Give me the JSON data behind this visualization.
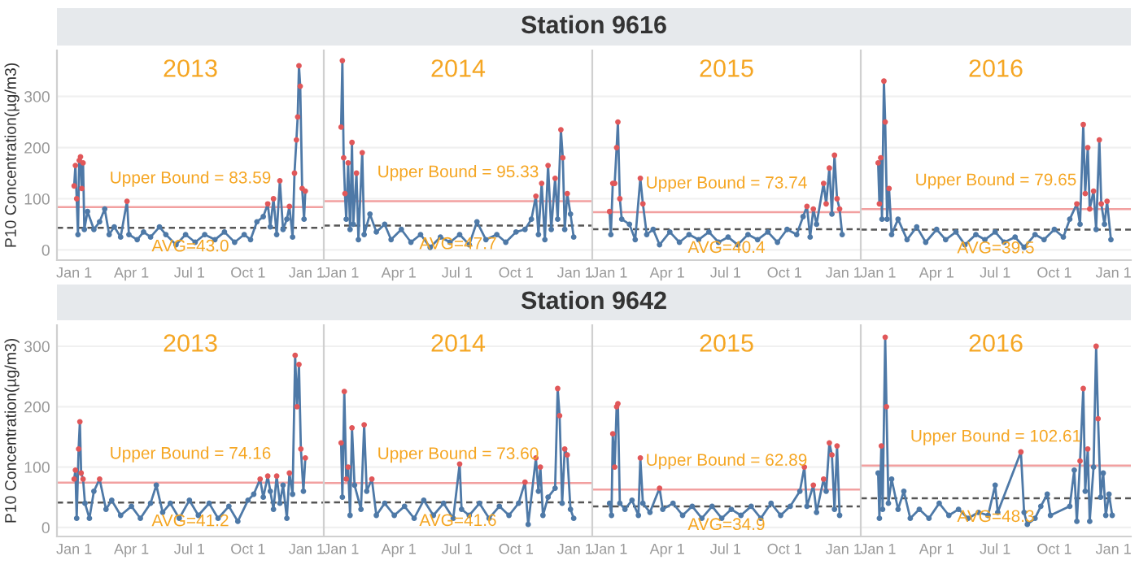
{
  "chart_data": [
    {
      "type": "line",
      "subtitle": "2013",
      "ylabel": "P10 Concentration(µg/m3)",
      "xlim": [
        "2012-12-05",
        "2014-01-28"
      ],
      "ylim": [
        -20,
        390
      ],
      "yticks": [
        0,
        100,
        200,
        300
      ],
      "xticks": [
        {
          "value": "2013-01-01",
          "label": "Jan 1"
        },
        {
          "value": "2013-04-01",
          "label": "Apr 1"
        },
        {
          "value": "2013-07-01",
          "label": "Jul 1"
        },
        {
          "value": "2013-10-01",
          "label": "Oct 1"
        },
        {
          "value": "2014-01-01",
          "label": "Jan 1"
        }
      ],
      "grid": "y",
      "marker": "circle",
      "line_style": "solid",
      "ref_lines": [
        {
          "axis": "y",
          "value": 83.59,
          "label": "Upper Bound = 83.59",
          "color": "#f2a0a0",
          "line_style": "solid"
        },
        {
          "axis": "y",
          "value": 43.0,
          "label": "AVG=43.0",
          "color": "#555555",
          "line_style": "dashed"
        }
      ],
      "series": [
        {
          "color": "#4e79a7",
          "x": [
            "2013-01-01",
            "2013-01-03",
            "2013-01-05",
            "2013-01-07",
            "2013-01-09",
            "2013-01-11",
            "2013-01-13",
            "2013-01-15",
            "2013-01-17",
            "2013-01-22",
            "2013-02-01",
            "2013-02-10",
            "2013-02-18",
            "2013-02-25",
            "2013-03-05",
            "2013-03-15",
            "2013-03-25",
            "2013-03-28",
            "2013-04-10",
            "2013-04-20",
            "2013-05-01",
            "2013-05-15",
            "2013-05-25",
            "2013-06-10",
            "2013-06-25",
            "2013-07-10",
            "2013-07-25",
            "2013-08-10",
            "2013-08-25",
            "2013-09-10",
            "2013-09-25",
            "2013-10-05",
            "2013-10-15",
            "2013-10-25",
            "2013-11-01",
            "2013-11-05",
            "2013-11-10",
            "2013-11-15",
            "2013-11-20",
            "2013-11-25",
            "2013-12-01",
            "2013-12-05",
            "2013-12-10",
            "2013-12-13",
            "2013-12-16",
            "2013-12-18",
            "2013-12-20",
            "2013-12-22",
            "2013-12-25",
            "2013-12-28",
            "2013-12-30"
          ],
          "values": [
            125,
            165,
            100,
            30,
            175,
            182,
            120,
            170,
            40,
            75,
            40,
            55,
            80,
            30,
            45,
            25,
            95,
            30,
            20,
            35,
            25,
            45,
            30,
            10,
            30,
            15,
            30,
            20,
            35,
            15,
            30,
            20,
            55,
            65,
            90,
            45,
            100,
            30,
            135,
            40,
            60,
            85,
            25,
            150,
            215,
            260,
            360,
            320,
            120,
            60,
            115
          ],
          "colors": [
            "#e15759",
            "#e15759",
            "#e15759",
            "#4e79a7",
            "#e15759",
            "#e15759",
            "#e15759",
            "#e15759",
            "#4e79a7",
            "#4e79a7",
            "#4e79a7",
            "#4e79a7",
            "#4e79a7",
            "#4e79a7",
            "#4e79a7",
            "#4e79a7",
            "#e15759",
            "#4e79a7",
            "#4e79a7",
            "#4e79a7",
            "#4e79a7",
            "#4e79a7",
            "#4e79a7",
            "#4e79a7",
            "#4e79a7",
            "#4e79a7",
            "#4e79a7",
            "#4e79a7",
            "#4e79a7",
            "#4e79a7",
            "#4e79a7",
            "#4e79a7",
            "#4e79a7",
            "#4e79a7",
            "#e15759",
            "#4e79a7",
            "#e15759",
            "#4e79a7",
            "#e15759",
            "#4e79a7",
            "#4e79a7",
            "#e15759",
            "#4e79a7",
            "#e15759",
            "#e15759",
            "#e15759",
            "#e15759",
            "#e15759",
            "#e15759",
            "#4e79a7",
            "#e15759"
          ]
        }
      ]
    },
    {
      "type": "line",
      "subtitle": "2014",
      "tick_labels": "x",
      "xlim": [
        "2013-12-05",
        "2015-01-28"
      ],
      "ylim": [
        -20,
        390
      ],
      "yticks": [
        0,
        100,
        200,
        300
      ],
      "xticks": [
        {
          "value": "2014-01-01",
          "label": "Jan 1"
        },
        {
          "value": "2014-04-01",
          "label": "Apr 1"
        },
        {
          "value": "2014-07-01",
          "label": "Jul 1"
        },
        {
          "value": "2014-10-01",
          "label": "Oct 1"
        },
        {
          "value": "2015-01-01",
          "label": "Jan 1"
        }
      ],
      "grid": "y",
      "marker": "circle",
      "line_style": "solid",
      "ref_lines": [
        {
          "axis": "y",
          "value": 95.33,
          "label": "Upper Bound = 95.33",
          "color": "#f2a0a0",
          "line_style": "solid"
        },
        {
          "axis": "y",
          "value": 47.7,
          "label": "AVG=47.7",
          "color": "#555555",
          "line_style": "dashed"
        }
      ],
      "series": [
        {
          "color": "#4e79a7",
          "x": [
            "2014-01-01",
            "2014-01-03",
            "2014-01-05",
            "2014-01-07",
            "2014-01-09",
            "2014-01-12",
            "2014-01-15",
            "2014-01-18",
            "2014-01-20",
            "2014-01-25",
            "2014-01-28",
            "2014-02-03",
            "2014-02-06",
            "2014-02-15",
            "2014-02-25",
            "2014-03-10",
            "2014-03-20",
            "2014-04-05",
            "2014-04-20",
            "2014-05-05",
            "2014-05-20",
            "2014-06-05",
            "2014-06-20",
            "2014-07-05",
            "2014-07-20",
            "2014-08-01",
            "2014-08-15",
            "2014-09-01",
            "2014-09-15",
            "2014-10-01",
            "2014-10-15",
            "2014-10-25",
            "2014-11-01",
            "2014-11-05",
            "2014-11-10",
            "2014-11-15",
            "2014-11-20",
            "2014-11-25",
            "2014-12-01",
            "2014-12-05",
            "2014-12-10",
            "2014-12-13",
            "2014-12-16",
            "2014-12-20",
            "2014-12-25",
            "2014-12-30"
          ],
          "values": [
            240,
            370,
            180,
            110,
            60,
            170,
            40,
            210,
            50,
            150,
            20,
            190,
            30,
            70,
            35,
            50,
            20,
            40,
            15,
            30,
            5,
            25,
            15,
            30,
            10,
            55,
            20,
            30,
            15,
            35,
            40,
            60,
            105,
            30,
            130,
            20,
            165,
            40,
            140,
            60,
            235,
            180,
            40,
            110,
            70,
            25
          ],
          "colors": [
            "#e15759",
            "#e15759",
            "#e15759",
            "#e15759",
            "#4e79a7",
            "#e15759",
            "#4e79a7",
            "#e15759",
            "#4e79a7",
            "#e15759",
            "#4e79a7",
            "#e15759",
            "#4e79a7",
            "#4e79a7",
            "#4e79a7",
            "#4e79a7",
            "#4e79a7",
            "#4e79a7",
            "#4e79a7",
            "#4e79a7",
            "#4e79a7",
            "#4e79a7",
            "#4e79a7",
            "#4e79a7",
            "#4e79a7",
            "#4e79a7",
            "#4e79a7",
            "#4e79a7",
            "#4e79a7",
            "#4e79a7",
            "#4e79a7",
            "#4e79a7",
            "#e15759",
            "#4e79a7",
            "#e15759",
            "#4e79a7",
            "#e15759",
            "#4e79a7",
            "#e15759",
            "#4e79a7",
            "#e15759",
            "#e15759",
            "#4e79a7",
            "#e15759",
            "#4e79a7",
            "#4e79a7"
          ]
        }
      ]
    },
    {
      "type": "line",
      "title": "Station 9616",
      "subtitle": "2015",
      "tick_labels": "x",
      "xlim": [
        "2014-12-05",
        "2016-01-28"
      ],
      "ylim": [
        -20,
        390
      ],
      "yticks": [
        0,
        100,
        200,
        300
      ],
      "xticks": [
        {
          "value": "2015-01-01",
          "label": "Jan 1"
        },
        {
          "value": "2015-04-01",
          "label": "Apr 1"
        },
        {
          "value": "2015-07-01",
          "label": "Jul 1"
        },
        {
          "value": "2015-10-01",
          "label": "Oct 1"
        },
        {
          "value": "2016-01-01",
          "label": "Jan 1"
        }
      ],
      "grid": "y",
      "marker": "circle",
      "line_style": "solid",
      "ref_lines": [
        {
          "axis": "y",
          "value": 73.74,
          "label": "Upper Bound = 73.74",
          "color": "#f2a0a0",
          "line_style": "solid"
        },
        {
          "axis": "y",
          "value": 40.4,
          "label": "AVG=40.4",
          "color": "#555555",
          "line_style": "dashed"
        }
      ],
      "series": [
        {
          "color": "#4e79a7",
          "x": [
            "2015-01-01",
            "2015-01-03",
            "2015-01-06",
            "2015-01-09",
            "2015-01-12",
            "2015-01-14",
            "2015-01-17",
            "2015-01-20",
            "2015-02-01",
            "2015-02-10",
            "2015-02-18",
            "2015-02-22",
            "2015-02-28",
            "2015-03-10",
            "2015-03-20",
            "2015-04-05",
            "2015-04-20",
            "2015-05-05",
            "2015-05-20",
            "2015-06-05",
            "2015-06-20",
            "2015-07-05",
            "2015-07-20",
            "2015-08-05",
            "2015-08-20",
            "2015-09-05",
            "2015-09-20",
            "2015-10-05",
            "2015-10-20",
            "2015-10-30",
            "2015-11-05",
            "2015-11-10",
            "2015-11-15",
            "2015-11-20",
            "2015-12-01",
            "2015-12-05",
            "2015-12-10",
            "2015-12-14",
            "2015-12-18",
            "2015-12-22",
            "2015-12-26",
            "2015-12-30"
          ],
          "values": [
            75,
            30,
            130,
            130,
            200,
            250,
            100,
            60,
            50,
            20,
            140,
            90,
            30,
            40,
            10,
            35,
            15,
            30,
            20,
            35,
            15,
            25,
            10,
            30,
            20,
            35,
            15,
            40,
            30,
            65,
            85,
            25,
            80,
            50,
            130,
            90,
            160,
            70,
            185,
            100,
            80,
            30
          ],
          "colors": [
            "#e15759",
            "#4e79a7",
            "#e15759",
            "#e15759",
            "#e15759",
            "#e15759",
            "#e15759",
            "#4e79a7",
            "#4e79a7",
            "#4e79a7",
            "#e15759",
            "#e15759",
            "#4e79a7",
            "#4e79a7",
            "#4e79a7",
            "#4e79a7",
            "#4e79a7",
            "#4e79a7",
            "#4e79a7",
            "#4e79a7",
            "#4e79a7",
            "#4e79a7",
            "#4e79a7",
            "#4e79a7",
            "#4e79a7",
            "#4e79a7",
            "#4e79a7",
            "#4e79a7",
            "#4e79a7",
            "#4e79a7",
            "#e15759",
            "#4e79a7",
            "#e15759",
            "#4e79a7",
            "#e15759",
            "#e15759",
            "#e15759",
            "#4e79a7",
            "#e15759",
            "#e15759",
            "#e15759",
            "#4e79a7"
          ]
        }
      ]
    },
    {
      "type": "line",
      "subtitle": "2016",
      "tick_labels": "x",
      "xlim": [
        "2015-12-05",
        "2017-01-28"
      ],
      "ylim": [
        -20,
        390
      ],
      "yticks": [
        0,
        100,
        200,
        300
      ],
      "xticks": [
        {
          "value": "2016-01-01",
          "label": "Jan 1"
        },
        {
          "value": "2016-04-01",
          "label": "Apr 1"
        },
        {
          "value": "2016-07-01",
          "label": "Jul 1"
        },
        {
          "value": "2016-10-01",
          "label": "Oct 1"
        },
        {
          "value": "2017-01-01",
          "label": "Jan 1"
        }
      ],
      "grid": "y",
      "marker": "circle",
      "line_style": "solid",
      "ref_lines": [
        {
          "axis": "y",
          "value": 79.65,
          "label": "Upper Bound = 79.65",
          "color": "#f2a0a0",
          "line_style": "solid"
        },
        {
          "axis": "y",
          "value": 39.5,
          "label": "AVG=39.5",
          "color": "#555555",
          "line_style": "dashed"
        }
      ],
      "series": [
        {
          "color": "#4e79a7",
          "x": [
            "2016-01-01",
            "2016-01-03",
            "2016-01-05",
            "2016-01-07",
            "2016-01-10",
            "2016-01-12",
            "2016-01-15",
            "2016-01-18",
            "2016-01-22",
            "2016-02-01",
            "2016-02-15",
            "2016-03-01",
            "2016-03-15",
            "2016-04-01",
            "2016-04-15",
            "2016-05-01",
            "2016-05-15",
            "2016-06-01",
            "2016-06-15",
            "2016-07-01",
            "2016-07-15",
            "2016-08-01",
            "2016-08-15",
            "2016-09-01",
            "2016-09-15",
            "2016-10-01",
            "2016-10-15",
            "2016-10-25",
            "2016-11-05",
            "2016-11-10",
            "2016-11-15",
            "2016-11-18",
            "2016-11-22",
            "2016-11-25",
            "2016-12-01",
            "2016-12-05",
            "2016-12-10",
            "2016-12-13",
            "2016-12-18",
            "2016-12-22",
            "2016-12-28"
          ],
          "values": [
            170,
            90,
            180,
            60,
            330,
            250,
            60,
            120,
            30,
            60,
            20,
            45,
            15,
            40,
            20,
            35,
            10,
            30,
            20,
            35,
            15,
            25,
            5,
            30,
            20,
            40,
            25,
            60,
            90,
            50,
            245,
            110,
            200,
            80,
            115,
            40,
            215,
            90,
            50,
            95,
            20
          ],
          "colors": [
            "#e15759",
            "#e15759",
            "#e15759",
            "#4e79a7",
            "#e15759",
            "#e15759",
            "#4e79a7",
            "#e15759",
            "#4e79a7",
            "#4e79a7",
            "#4e79a7",
            "#4e79a7",
            "#4e79a7",
            "#4e79a7",
            "#4e79a7",
            "#4e79a7",
            "#4e79a7",
            "#4e79a7",
            "#4e79a7",
            "#4e79a7",
            "#4e79a7",
            "#4e79a7",
            "#4e79a7",
            "#4e79a7",
            "#4e79a7",
            "#4e79a7",
            "#4e79a7",
            "#4e79a7",
            "#e15759",
            "#4e79a7",
            "#e15759",
            "#e15759",
            "#e15759",
            "#e15759",
            "#e15759",
            "#4e79a7",
            "#e15759",
            "#e15759",
            "#4e79a7",
            "#e15759",
            "#4e79a7"
          ]
        }
      ]
    },
    {
      "type": "line",
      "subtitle": "2013",
      "ylabel": "P10 Concentration(µg/m3)",
      "xlim": [
        "2012-12-05",
        "2014-01-28"
      ],
      "ylim": [
        -15,
        335
      ],
      "yticks": [
        0,
        100,
        200,
        300
      ],
      "xticks": [
        {
          "value": "2013-01-01",
          "label": "Jan 1"
        },
        {
          "value": "2013-04-01",
          "label": "Apr 1"
        },
        {
          "value": "2013-07-01",
          "label": "Jul 1"
        },
        {
          "value": "2013-10-01",
          "label": "Oct 1"
        },
        {
          "value": "2014-01-01",
          "label": "Jan 1"
        }
      ],
      "grid": "y",
      "marker": "circle",
      "line_style": "solid",
      "ref_lines": [
        {
          "axis": "y",
          "value": 74.16,
          "label": "Upper Bound = 74.16",
          "color": "#f2a0a0",
          "line_style": "solid"
        },
        {
          "axis": "y",
          "value": 41.2,
          "label": "AVG=41.2",
          "color": "#555555",
          "line_style": "dashed"
        }
      ],
      "series": [
        {
          "color": "#4e79a7",
          "x": [
            "2013-01-01",
            "2013-01-03",
            "2013-01-05",
            "2013-01-08",
            "2013-01-10",
            "2013-01-12",
            "2013-01-15",
            "2013-01-18",
            "2013-01-25",
            "2013-02-01",
            "2013-02-10",
            "2013-02-20",
            "2013-03-01",
            "2013-03-15",
            "2013-04-01",
            "2013-04-15",
            "2013-05-01",
            "2013-05-10",
            "2013-05-20",
            "2013-06-01",
            "2013-06-15",
            "2013-07-01",
            "2013-07-15",
            "2013-08-01",
            "2013-08-15",
            "2013-09-01",
            "2013-09-15",
            "2013-10-01",
            "2013-10-10",
            "2013-10-20",
            "2013-10-25",
            "2013-11-01",
            "2013-11-05",
            "2013-11-10",
            "2013-11-15",
            "2013-11-20",
            "2013-11-25",
            "2013-12-01",
            "2013-12-05",
            "2013-12-10",
            "2013-12-14",
            "2013-12-17",
            "2013-12-20",
            "2013-12-23",
            "2013-12-27",
            "2013-12-30"
          ],
          "values": [
            80,
            95,
            15,
            130,
            175,
            90,
            80,
            40,
            15,
            60,
            80,
            30,
            45,
            20,
            35,
            15,
            40,
            70,
            25,
            40,
            15,
            45,
            20,
            40,
            15,
            35,
            10,
            45,
            55,
            80,
            50,
            85,
            60,
            30,
            85,
            40,
            70,
            15,
            90,
            55,
            285,
            200,
            270,
            130,
            60,
            115
          ],
          "colors": [
            "#e15759",
            "#e15759",
            "#4e79a7",
            "#e15759",
            "#e15759",
            "#e15759",
            "#e15759",
            "#4e79a7",
            "#4e79a7",
            "#4e79a7",
            "#e15759",
            "#4e79a7",
            "#4e79a7",
            "#4e79a7",
            "#4e79a7",
            "#4e79a7",
            "#4e79a7",
            "#4e79a7",
            "#4e79a7",
            "#4e79a7",
            "#4e79a7",
            "#4e79a7",
            "#4e79a7",
            "#4e79a7",
            "#4e79a7",
            "#4e79a7",
            "#4e79a7",
            "#4e79a7",
            "#4e79a7",
            "#e15759",
            "#4e79a7",
            "#e15759",
            "#4e79a7",
            "#4e79a7",
            "#e15759",
            "#4e79a7",
            "#4e79a7",
            "#4e79a7",
            "#e15759",
            "#4e79a7",
            "#e15759",
            "#e15759",
            "#e15759",
            "#e15759",
            "#4e79a7",
            "#e15759"
          ]
        }
      ]
    },
    {
      "type": "line",
      "subtitle": "2014",
      "tick_labels": "x",
      "xlim": [
        "2013-12-05",
        "2015-01-28"
      ],
      "ylim": [
        -15,
        335
      ],
      "yticks": [
        0,
        100,
        200,
        300
      ],
      "xticks": [
        {
          "value": "2014-01-01",
          "label": "Jan 1"
        },
        {
          "value": "2014-04-01",
          "label": "Apr 1"
        },
        {
          "value": "2014-07-01",
          "label": "Jul 1"
        },
        {
          "value": "2014-10-01",
          "label": "Oct 1"
        },
        {
          "value": "2015-01-01",
          "label": "Jan 1"
        }
      ],
      "grid": "y",
      "marker": "circle",
      "line_style": "solid",
      "ref_lines": [
        {
          "axis": "y",
          "value": 73.6,
          "label": "Upper Bound = 73.60",
          "color": "#f2a0a0",
          "line_style": "solid"
        },
        {
          "axis": "y",
          "value": 41.6,
          "label": "AVG=41.6",
          "color": "#555555",
          "line_style": "dashed"
        }
      ],
      "series": [
        {
          "color": "#4e79a7",
          "x": [
            "2014-01-01",
            "2014-01-03",
            "2014-01-06",
            "2014-01-09",
            "2014-01-12",
            "2014-01-15",
            "2014-01-18",
            "2014-01-22",
            "2014-02-01",
            "2014-02-06",
            "2014-02-10",
            "2014-02-18",
            "2014-02-25",
            "2014-03-10",
            "2014-03-25",
            "2014-04-10",
            "2014-04-25",
            "2014-05-10",
            "2014-05-25",
            "2014-06-10",
            "2014-06-25",
            "2014-07-05",
            "2014-07-08",
            "2014-07-20",
            "2014-08-05",
            "2014-08-20",
            "2014-09-05",
            "2014-09-20",
            "2014-10-05",
            "2014-10-15",
            "2014-10-20",
            "2014-11-01",
            "2014-11-05",
            "2014-11-08",
            "2014-11-12",
            "2014-11-20",
            "2014-12-01",
            "2014-12-05",
            "2014-12-08",
            "2014-12-12",
            "2014-12-16",
            "2014-12-20",
            "2014-12-25",
            "2014-12-30"
          ],
          "values": [
            140,
            50,
            225,
            80,
            100,
            20,
            165,
            70,
            30,
            170,
            60,
            80,
            20,
            40,
            20,
            35,
            15,
            45,
            20,
            40,
            15,
            105,
            30,
            20,
            40,
            15,
            35,
            20,
            40,
            75,
            5,
            115,
            60,
            100,
            20,
            50,
            65,
            230,
            185,
            40,
            130,
            120,
            30,
            15
          ],
          "colors": [
            "#e15759",
            "#4e79a7",
            "#e15759",
            "#e15759",
            "#e15759",
            "#4e79a7",
            "#e15759",
            "#4e79a7",
            "#4e79a7",
            "#e15759",
            "#4e79a7",
            "#e15759",
            "#4e79a7",
            "#4e79a7",
            "#4e79a7",
            "#4e79a7",
            "#4e79a7",
            "#4e79a7",
            "#4e79a7",
            "#4e79a7",
            "#4e79a7",
            "#e15759",
            "#4e79a7",
            "#4e79a7",
            "#4e79a7",
            "#4e79a7",
            "#4e79a7",
            "#4e79a7",
            "#4e79a7",
            "#e15759",
            "#4e79a7",
            "#e15759",
            "#4e79a7",
            "#e15759",
            "#4e79a7",
            "#4e79a7",
            "#4e79a7",
            "#e15759",
            "#e15759",
            "#4e79a7",
            "#e15759",
            "#e15759",
            "#4e79a7",
            "#4e79a7"
          ]
        }
      ]
    },
    {
      "type": "line",
      "title": "Station 9642",
      "subtitle": "2015",
      "tick_labels": "x",
      "xlim": [
        "2014-12-05",
        "2016-01-28"
      ],
      "ylim": [
        -15,
        335
      ],
      "yticks": [
        0,
        100,
        200,
        300
      ],
      "xticks": [
        {
          "value": "2015-01-01",
          "label": "Jan 1"
        },
        {
          "value": "2015-04-01",
          "label": "Apr 1"
        },
        {
          "value": "2015-07-01",
          "label": "Jul 1"
        },
        {
          "value": "2015-10-01",
          "label": "Oct 1"
        },
        {
          "value": "2016-01-01",
          "label": "Jan 1"
        }
      ],
      "grid": "y",
      "marker": "circle",
      "line_style": "solid",
      "ref_lines": [
        {
          "axis": "y",
          "value": 62.89,
          "label": "Upper Bound = 62.89",
          "color": "#f2a0a0",
          "line_style": "solid"
        },
        {
          "axis": "y",
          "value": 34.9,
          "label": "AVG=34.9",
          "color": "#555555",
          "line_style": "dashed"
        }
      ],
      "series": [
        {
          "color": "#4e79a7",
          "x": [
            "2015-01-01",
            "2015-01-04",
            "2015-01-06",
            "2015-01-09",
            "2015-01-12",
            "2015-01-14",
            "2015-01-17",
            "2015-01-25",
            "2015-02-05",
            "2015-02-15",
            "2015-02-18",
            "2015-02-22",
            "2015-03-05",
            "2015-03-20",
            "2015-03-25",
            "2015-04-10",
            "2015-04-25",
            "2015-05-10",
            "2015-05-25",
            "2015-06-10",
            "2015-06-25",
            "2015-07-10",
            "2015-07-25",
            "2015-08-10",
            "2015-08-25",
            "2015-09-10",
            "2015-09-25",
            "2015-10-10",
            "2015-10-25",
            "2015-11-01",
            "2015-11-05",
            "2015-11-15",
            "2015-11-20",
            "2015-12-01",
            "2015-12-05",
            "2015-12-10",
            "2015-12-14",
            "2015-12-18",
            "2015-12-22",
            "2015-12-26"
          ],
          "values": [
            40,
            20,
            155,
            100,
            200,
            205,
            40,
            30,
            45,
            20,
            115,
            40,
            25,
            65,
            30,
            40,
            20,
            35,
            15,
            35,
            15,
            30,
            20,
            35,
            15,
            40,
            20,
            35,
            60,
            100,
            35,
            70,
            25,
            80,
            60,
            140,
            120,
            30,
            135,
            20
          ],
          "colors": [
            "#4e79a7",
            "#4e79a7",
            "#e15759",
            "#e15759",
            "#e15759",
            "#e15759",
            "#4e79a7",
            "#4e79a7",
            "#4e79a7",
            "#4e79a7",
            "#e15759",
            "#4e79a7",
            "#4e79a7",
            "#e15759",
            "#4e79a7",
            "#4e79a7",
            "#4e79a7",
            "#4e79a7",
            "#4e79a7",
            "#4e79a7",
            "#4e79a7",
            "#4e79a7",
            "#4e79a7",
            "#4e79a7",
            "#4e79a7",
            "#4e79a7",
            "#4e79a7",
            "#4e79a7",
            "#4e79a7",
            "#e15759",
            "#4e79a7",
            "#e15759",
            "#4e79a7",
            "#e15759",
            "#4e79a7",
            "#e15759",
            "#e15759",
            "#4e79a7",
            "#e15759",
            "#4e79a7"
          ]
        }
      ]
    },
    {
      "type": "line",
      "subtitle": "2016",
      "tick_labels": "x",
      "xlim": [
        "2015-12-05",
        "2017-01-28"
      ],
      "ylim": [
        -15,
        335
      ],
      "yticks": [
        0,
        100,
        200,
        300
      ],
      "xticks": [
        {
          "value": "2016-01-01",
          "label": "Jan 1"
        },
        {
          "value": "2016-04-01",
          "label": "Apr 1"
        },
        {
          "value": "2016-07-01",
          "label": "Jul 1"
        },
        {
          "value": "2016-10-01",
          "label": "Oct 1"
        },
        {
          "value": "2017-01-01",
          "label": "Jan 1"
        }
      ],
      "grid": "y",
      "marker": "circle",
      "line_style": "solid",
      "ref_lines": [
        {
          "axis": "y",
          "value": 102.61,
          "label": "Upper Bound = 102.61",
          "color": "#f2a0a0",
          "line_style": "solid"
        },
        {
          "axis": "y",
          "value": 48.3,
          "label": "AVG=48.3",
          "color": "#555555",
          "line_style": "dashed"
        }
      ],
      "series": [
        {
          "color": "#4e79a7",
          "x": [
            "2016-01-01",
            "2016-01-03",
            "2016-01-06",
            "2016-01-08",
            "2016-01-12",
            "2016-01-14",
            "2016-01-17",
            "2016-01-22",
            "2016-02-01",
            "2016-02-10",
            "2016-02-20",
            "2016-03-05",
            "2016-03-20",
            "2016-04-05",
            "2016-04-20",
            "2016-05-05",
            "2016-05-20",
            "2016-06-05",
            "2016-06-20",
            "2016-07-01",
            "2016-07-05",
            "2016-08-10",
            "2016-08-15",
            "2016-08-20",
            "2016-09-01",
            "2016-09-10",
            "2016-09-20",
            "2016-09-25",
            "2016-10-25",
            "2016-11-01",
            "2016-11-05",
            "2016-11-10",
            "2016-11-15",
            "2016-11-18",
            "2016-11-22",
            "2016-11-25",
            "2016-12-01",
            "2016-12-05",
            "2016-12-08",
            "2016-12-12",
            "2016-12-16",
            "2016-12-20",
            "2016-12-25",
            "2016-12-30"
          ],
          "values": [
            90,
            15,
            135,
            30,
            315,
            200,
            40,
            80,
            30,
            60,
            15,
            30,
            15,
            40,
            20,
            30,
            15,
            25,
            20,
            70,
            25,
            125,
            25,
            5,
            15,
            35,
            55,
            20,
            35,
            95,
            10,
            110,
            230,
            60,
            130,
            10,
            100,
            300,
            180,
            50,
            90,
            20,
            55,
            20
          ],
          "colors": [
            "#4e79a7",
            "#4e79a7",
            "#e15759",
            "#4e79a7",
            "#e15759",
            "#e15759",
            "#4e79a7",
            "#4e79a7",
            "#4e79a7",
            "#4e79a7",
            "#4e79a7",
            "#4e79a7",
            "#4e79a7",
            "#4e79a7",
            "#4e79a7",
            "#4e79a7",
            "#4e79a7",
            "#4e79a7",
            "#4e79a7",
            "#4e79a7",
            "#4e79a7",
            "#e15759",
            "#4e79a7",
            "#4e79a7",
            "#4e79a7",
            "#4e79a7",
            "#4e79a7",
            "#4e79a7",
            "#4e79a7",
            "#4e79a7",
            "#4e79a7",
            "#e15759",
            "#e15759",
            "#4e79a7",
            "#e15759",
            "#4e79a7",
            "#4e79a7",
            "#e15759",
            "#e15759",
            "#4e79a7",
            "#4e79a7",
            "#4e79a7",
            "#4e79a7",
            "#4e79a7"
          ]
        }
      ]
    }
  ]
}
